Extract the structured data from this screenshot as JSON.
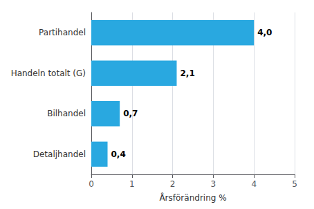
{
  "chart_data": {
    "type": "bar",
    "orientation": "horizontal",
    "xlabel": "Årsförändring %",
    "categories": [
      "Detaljhandel",
      "Bilhandel",
      "Handeln totalt (G)",
      "Partihandel"
    ],
    "values": [
      0.4,
      0.7,
      2.1,
      4.0
    ],
    "value_labels": [
      "0,4",
      "0,7",
      "2,1",
      "4,0"
    ],
    "color": "#29a8e0",
    "xlim": [
      0,
      5
    ],
    "xticks": [
      0,
      1,
      2,
      3,
      4,
      5
    ],
    "grid": true,
    "data_labels": true
  }
}
